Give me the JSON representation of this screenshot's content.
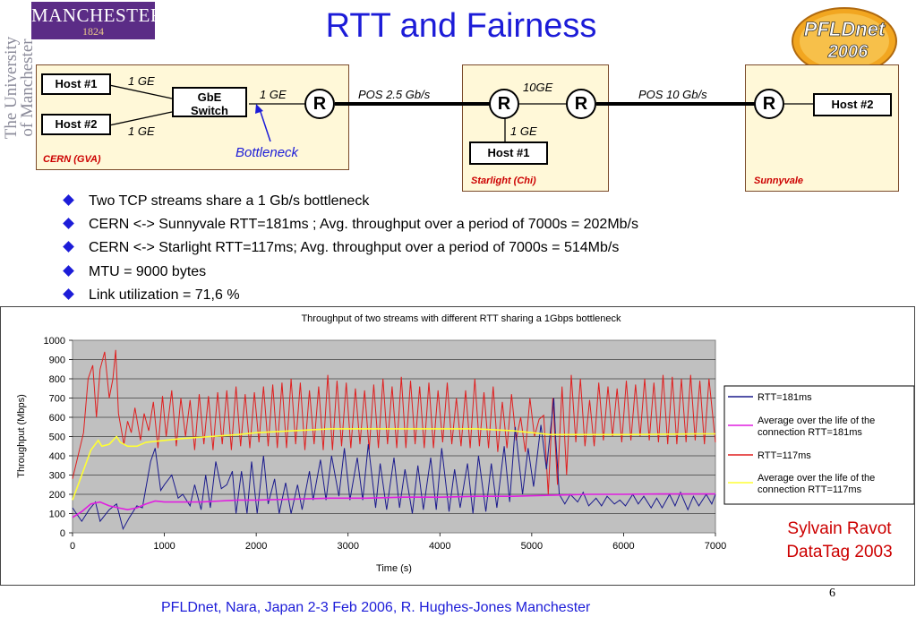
{
  "logo": {
    "manchester": "MANCHESTER",
    "year": "1824",
    "univ_line1": "The University",
    "univ_line2": "of Manchester"
  },
  "title": "RTT and Fairness",
  "pfldnet_logo": {
    "line1": "PFLDnet",
    "line2": "2006"
  },
  "diagram": {
    "cern": {
      "label": "CERN (GVA)",
      "host1": "Host #1",
      "host2": "Host #2",
      "switch_line1": "GbE",
      "switch_line2": "Switch",
      "link_top": "1 GE",
      "link_bottom": "1 GE",
      "link_out": "1 GE",
      "router": "R"
    },
    "pos1": "POS 2.5 Gb/s",
    "starlight": {
      "label": "Starlight (Chi)",
      "router_left": "R",
      "router_right": "R",
      "link_top": "10GE",
      "link_down": "1 GE",
      "host": "Host #1"
    },
    "pos2": "POS 10 Gb/s",
    "sunnyvale": {
      "label": "Sunnyvale",
      "router": "R",
      "host": "Host #2"
    },
    "bottleneck": "Bottleneck"
  },
  "bullets": [
    "Two TCP streams share a 1 Gb/s bottleneck",
    "CERN <-> Sunnyvale RTT=181ms ; Avg. throughput over a period of 7000s = 202Mb/s",
    "CERN <-> Starlight RTT=117ms; Avg. throughput over a period of 7000s = 514Mb/s",
    "MTU = 9000 bytes",
    "Link utilization = 71,6 %"
  ],
  "chart_data": {
    "type": "line",
    "title": "Throughput of two streams with different RTT sharing a 1Gbps bottleneck",
    "xlabel": "Time (s)",
    "ylabel": "Throughput (Mbps)",
    "xlim": [
      0,
      7000
    ],
    "ylim": [
      0,
      1000
    ],
    "xticks": [
      "0",
      "1000",
      "2000",
      "3000",
      "4000",
      "5000",
      "6000",
      "7000"
    ],
    "yticks": [
      "0",
      "100",
      "200",
      "300",
      "400",
      "500",
      "600",
      "700",
      "800",
      "900",
      "1000"
    ],
    "grid": true,
    "legend_position": "right",
    "series": [
      {
        "name": "RTT=181ms",
        "color": "#1a1a8c",
        "x": [
          0,
          100,
          180,
          250,
          300,
          400,
          480,
          550,
          620,
          700,
          760,
          850,
          900,
          960,
          1000,
          1080,
          1150,
          1200,
          1280,
          1330,
          1400,
          1450,
          1500,
          1560,
          1620,
          1680,
          1740,
          1780,
          1840,
          1900,
          1950,
          2010,
          2080,
          2130,
          2200,
          2250,
          2320,
          2380,
          2450,
          2500,
          2580,
          2620,
          2700,
          2760,
          2820,
          2900,
          2960,
          3020,
          3100,
          3160,
          3220,
          3300,
          3350,
          3420,
          3500,
          3560,
          3620,
          3700,
          3760,
          3820,
          3900,
          3960,
          4020,
          4100,
          4160,
          4220,
          4300,
          4360,
          4420,
          4500,
          4560,
          4620,
          4700,
          4760,
          4820,
          4900,
          4960,
          5020,
          5100,
          5160,
          5240,
          5260,
          5300,
          5360,
          5420,
          5500,
          5560,
          5620,
          5700,
          5760,
          5820,
          5900,
          5960,
          6020,
          6100,
          6160,
          6220,
          6300,
          6360,
          6420,
          6500,
          6560,
          6620,
          6700,
          6760,
          6820,
          6900,
          6960,
          7000
        ],
        "y": [
          130,
          60,
          120,
          160,
          60,
          120,
          150,
          20,
          80,
          140,
          130,
          370,
          440,
          220,
          250,
          300,
          180,
          200,
          140,
          250,
          120,
          300,
          130,
          370,
          230,
          250,
          320,
          100,
          320,
          100,
          370,
          100,
          400,
          150,
          280,
          100,
          260,
          100,
          250,
          120,
          320,
          170,
          380,
          170,
          400,
          190,
          440,
          170,
          390,
          170,
          460,
          130,
          360,
          120,
          390,
          130,
          330,
          100,
          350,
          120,
          390,
          120,
          440,
          110,
          330,
          130,
          360,
          100,
          400,
          110,
          360,
          130,
          450,
          160,
          550,
          200,
          440,
          240,
          560,
          330,
          700,
          500,
          200,
          150,
          200,
          160,
          210,
          140,
          180,
          140,
          190,
          150,
          170,
          140,
          200,
          150,
          190,
          130,
          180,
          130,
          200,
          140,
          210,
          120,
          190,
          140,
          200,
          150,
          200
        ]
      },
      {
        "name": "Average over the life of the connection RTT=181ms",
        "color": "#e01ee0",
        "x": [
          0,
          100,
          200,
          300,
          400,
          500,
          600,
          700,
          800,
          900,
          1000,
          1200,
          1400,
          1600,
          1800,
          2000,
          2400,
          2800,
          3200,
          3600,
          4000,
          4400,
          4800,
          5200,
          5600,
          6000,
          6400,
          6800,
          7000
        ],
        "y": [
          80,
          110,
          150,
          160,
          140,
          130,
          120,
          130,
          150,
          165,
          160,
          160,
          160,
          165,
          170,
          170,
          175,
          180,
          180,
          185,
          185,
          190,
          190,
          195,
          200,
          200,
          202,
          202,
          202
        ]
      },
      {
        "name": "RTT=117ms",
        "color": "#e01e1e",
        "x": [
          0,
          120,
          170,
          220,
          260,
          300,
          350,
          400,
          440,
          470,
          500,
          560,
          600,
          640,
          680,
          740,
          780,
          830,
          880,
          930,
          980,
          1020,
          1080,
          1130,
          1180,
          1230,
          1280,
          1330,
          1380,
          1430,
          1480,
          1530,
          1580,
          1630,
          1680,
          1730,
          1780,
          1830,
          1880,
          1930,
          1980,
          2030,
          2080,
          2130,
          2180,
          2230,
          2280,
          2330,
          2380,
          2430,
          2480,
          2530,
          2580,
          2630,
          2680,
          2730,
          2780,
          2830,
          2880,
          2930,
          2980,
          3030,
          3080,
          3130,
          3180,
          3230,
          3280,
          3330,
          3380,
          3430,
          3480,
          3530,
          3580,
          3630,
          3680,
          3730,
          3780,
          3830,
          3880,
          3930,
          3980,
          4030,
          4080,
          4130,
          4180,
          4230,
          4280,
          4330,
          4380,
          4430,
          4480,
          4530,
          4580,
          4630,
          4680,
          4730,
          4780,
          4830,
          4880,
          4930,
          4980,
          5030,
          5080,
          5130,
          5180,
          5230,
          5280,
          5330,
          5380,
          5430,
          5480,
          5530,
          5580,
          5630,
          5680,
          5730,
          5780,
          5830,
          5880,
          5930,
          5980,
          6030,
          6080,
          6130,
          6180,
          6230,
          6280,
          6330,
          6380,
          6430,
          6480,
          6530,
          6580,
          6630,
          6680,
          6730,
          6780,
          6830,
          6880,
          6930,
          7000
        ],
        "y": [
          280,
          520,
          800,
          870,
          600,
          850,
          940,
          700,
          800,
          950,
          620,
          460,
          580,
          520,
          650,
          480,
          620,
          530,
          680,
          440,
          710,
          500,
          740,
          450,
          700,
          500,
          690,
          430,
          720,
          460,
          710,
          430,
          730,
          460,
          740,
          430,
          760,
          450,
          720,
          440,
          730,
          470,
          760,
          450,
          770,
          440,
          780,
          440,
          800,
          460,
          780,
          430,
          740,
          460,
          760,
          430,
          820,
          430,
          790,
          450,
          780,
          440,
          750,
          460,
          740,
          430,
          770,
          440,
          800,
          460,
          760,
          440,
          810,
          440,
          790,
          460,
          760,
          440,
          780,
          440,
          740,
          470,
          780,
          460,
          700,
          450,
          740,
          440,
          800,
          450,
          730,
          440,
          760,
          420,
          680,
          440,
          720,
          480,
          600,
          420,
          700,
          500,
          590,
          610,
          200,
          700,
          250,
          760,
          300,
          820,
          470,
          800,
          450,
          690,
          450,
          780,
          480,
          760,
          500,
          750,
          470,
          790,
          480,
          770,
          500,
          800,
          480,
          780,
          470,
          820,
          460,
          810,
          460,
          800,
          470,
          820,
          480,
          790,
          460,
          800,
          470
        ]
      },
      {
        "name": "Average over the life of the connection RTT=117ms",
        "color": "#ffff33",
        "x": [
          0,
          100,
          200,
          280,
          320,
          400,
          480,
          520,
          600,
          700,
          800,
          1000,
          1200,
          1500,
          1800,
          2000,
          2400,
          2800,
          3200,
          3600,
          4000,
          4400,
          4800,
          5000,
          5200,
          5400,
          5600,
          6000,
          6400,
          6800,
          7000
        ],
        "y": [
          170,
          300,
          430,
          480,
          450,
          460,
          500,
          470,
          450,
          450,
          470,
          480,
          490,
          500,
          510,
          520,
          530,
          540,
          540,
          540,
          540,
          540,
          530,
          520,
          510,
          510,
          510,
          510,
          512,
          514,
          514
        ]
      }
    ]
  },
  "credit": {
    "line1": "Sylvain Ravot",
    "line2": "DataTag 2003"
  },
  "page_number": "6",
  "footer": "PFLDnet, Nara, Japan 2-3 Feb 2006,  R. Hughes-Jones  Manchester"
}
